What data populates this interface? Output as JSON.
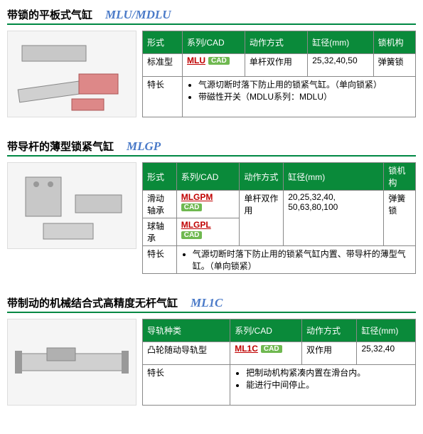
{
  "sections": [
    {
      "title_zh": "带锁的平板式气缸",
      "title_en": "MLU/MDLU",
      "headers": [
        "形式",
        "系列/CAD",
        "动作方式",
        "缸径(mm)",
        "锁机构"
      ],
      "rows": [
        {
          "c0": "标准型",
          "series": "MLU",
          "cad": "CAD",
          "c2": "单杆双作用",
          "c3": "25,32,40,50",
          "c4": "弹簧锁"
        }
      ],
      "feature_label": "特长",
      "features": [
        "气源切断时落下防止用的锁紧气缸。（单向锁紧）",
        "带磁性开关（MDLU系列：MDLU）"
      ],
      "feat_colspan": 4
    },
    {
      "title_zh": "带导杆的薄型锁紧气缸",
      "title_en": "MLGP",
      "headers": [
        "形式",
        "系列/CAD",
        "动作方式",
        "缸径(mm)",
        "锁机构"
      ],
      "rows": [
        {
          "c0": "滑动轴承",
          "series": "MLGPM",
          "cad": "CAD",
          "c2": "单杆双作用",
          "c3": "20,25,32,40, 50,63,80,100",
          "c4": "弹簧锁",
          "c2_rowspan": 2,
          "c3_rowspan": 2,
          "c4_rowspan": 2
        },
        {
          "c0": "球轴承",
          "series": "MLGPL",
          "cad": "CAD"
        }
      ],
      "feature_label": "特长",
      "features": [
        "气源切断时落下防止用的锁紧气缸内置、带导杆的薄型气缸。（单向锁紧）"
      ],
      "feat_colspan": 4
    },
    {
      "title_zh": "带制动的机械结合式高精度无杆气缸",
      "title_en": "ML1C",
      "headers": [
        "导轨种类",
        "系列/CAD",
        "动作方式",
        "缸径(mm)"
      ],
      "rows": [
        {
          "c0": "凸轮随动导轨型",
          "series": "ML1C",
          "cad": "CAD",
          "c2": "双作用",
          "c3": "25,32,40"
        }
      ],
      "feature_label": "特长",
      "features": [
        "把制动机构紧凑内置在滑台内。",
        "能进行中间停止。"
      ],
      "feat_colspan": 3
    }
  ],
  "colors": {
    "header_bg": "#0a8a3a",
    "border": "#888888",
    "title_underline": "#008844",
    "series_link": "#c00000",
    "cad_bg": "#6fb850",
    "title_en": "#4a7ac8"
  }
}
